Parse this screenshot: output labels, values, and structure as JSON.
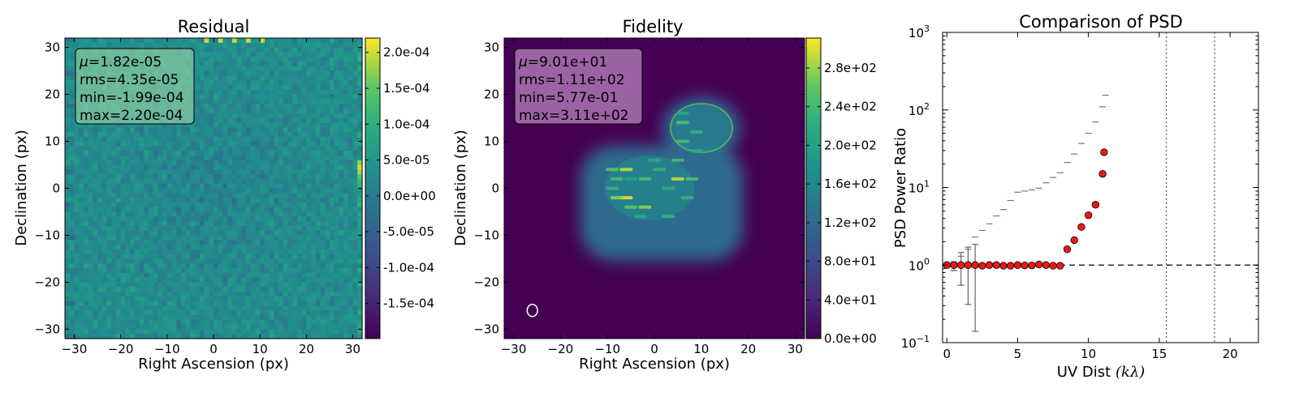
{
  "chart_data": [
    {
      "type": "heatmap",
      "title": "Residual",
      "xlabel": "Right Ascension (px)",
      "ylabel": "Declination (px)",
      "xlim": [
        -32,
        32
      ],
      "ylim": [
        -32,
        32
      ],
      "xticks": [
        -30,
        -20,
        -10,
        0,
        10,
        20,
        30
      ],
      "yticks": [
        -30,
        -20,
        -10,
        0,
        10,
        20,
        30
      ],
      "xtick_labels": [
        "−30",
        "−20",
        "−10",
        "0",
        "10",
        "20",
        "30"
      ],
      "ytick_labels": [
        "−30",
        "−20",
        "−10",
        "0",
        "10",
        "20",
        "30"
      ],
      "colormap": "viridis",
      "colorbar": {
        "min": -0.000199,
        "max": 0.00022,
        "ticks": [
          -0.00015,
          -0.0001,
          -5e-05,
          0,
          5e-05,
          0.0001,
          0.00015,
          0.0002
        ],
        "labels": [
          "-1.5e-04",
          "-1.0e-04",
          "-5.0e-05",
          "0.0e+00",
          "5.0e-05",
          "1.0e-04",
          "1.5e-04",
          "2.0e-04"
        ]
      },
      "stats": {
        "mu_symbol": "μ",
        "mu": "=1.82e-05",
        "rms": "rms=4.35e-05",
        "min": "min=-1.99e-04",
        "max": "max=2.20e-04"
      },
      "box_color": "#a8dca8"
    },
    {
      "type": "heatmap",
      "title": "Fidelity",
      "xlabel": "Right Ascension (px)",
      "ylabel": "Declination (px)",
      "xlim": [
        -32,
        32
      ],
      "ylim": [
        -32,
        32
      ],
      "xticks": [
        -30,
        -20,
        -10,
        0,
        10,
        20,
        30
      ],
      "yticks": [
        -30,
        -20,
        -10,
        0,
        10,
        20,
        30
      ],
      "xtick_labels": [
        "−30",
        "−20",
        "−10",
        "0",
        "10",
        "20",
        "30"
      ],
      "ytick_labels": [
        "−30",
        "−20",
        "−10",
        "0",
        "10",
        "20",
        "30"
      ],
      "colormap": "viridis",
      "colorbar": {
        "min": 0,
        "max": 311,
        "ticks": [
          0,
          40,
          80,
          120,
          160,
          200,
          240,
          280
        ],
        "labels": [
          "0.0e+00",
          "4.0e+01",
          "8.0e+01",
          "1.2e+02",
          "1.6e+02",
          "2.0e+02",
          "2.4e+02",
          "2.8e+02"
        ]
      },
      "stats": {
        "mu_symbol": "μ",
        "mu": "=9.01e+01",
        "rms": "rms=1.11e+02",
        "min": "min=5.77e-01",
        "max": "max=3.11e+02"
      },
      "box_color": "#e6b4e6",
      "beam": {
        "x": -26,
        "y": -26,
        "major": 2.6,
        "minor": 2.2,
        "color": "#ffffff"
      }
    },
    {
      "type": "scatter",
      "title": "Comparison of PSD",
      "xlabel_text": "UV Dist ",
      "xlabel_math": "(kλ)",
      "ylabel": "PSD Power Ratio",
      "xlim": [
        -0.3,
        22
      ],
      "ylim_log10": [
        -1,
        3
      ],
      "log_y": true,
      "xticks": [
        0,
        5,
        10,
        15,
        20
      ],
      "xtick_labels": [
        "0",
        "5",
        "10",
        "15",
        "20"
      ],
      "ytick_base": "10",
      "yticks_exp": [
        -1,
        0,
        1,
        2,
        3
      ],
      "ytick_exp_labels": [
        "−1",
        "0",
        "1",
        "2",
        "3"
      ],
      "reference_line": {
        "y": 1,
        "style": "dashed"
      },
      "vertical_lines": [
        15.5,
        18.9
      ],
      "series": [
        {
          "marker": "circle",
          "color": "#e8191a",
          "x": [
            0,
            0.5,
            1.0,
            1.5,
            2.0,
            2.5,
            3.0,
            3.5,
            4.0,
            4.5,
            5.0,
            5.5,
            6.0,
            6.5,
            7.0,
            7.5,
            8.0,
            8.5,
            9.0,
            9.5,
            10.0,
            10.5,
            11.0
          ],
          "y": [
            1.0,
            1.0,
            1.0,
            1.0,
            1.0,
            0.98,
            1.0,
            1.0,
            0.98,
            0.98,
            1.0,
            0.99,
            0.99,
            1.02,
            1.0,
            0.98,
            0.98,
            1.6,
            2.1,
            3.1,
            4.4,
            6.0,
            15.0
          ]
        }
      ],
      "extra_point": {
        "x": 11.1,
        "y": 28.5
      },
      "error_bars": [
        {
          "x": 0.5,
          "lo": 0.85,
          "hi": 1.1
        },
        {
          "x": 1.0,
          "lo": 0.55,
          "hi": 1.45
        },
        {
          "x": 1.5,
          "lo": 0.31,
          "hi": 1.7
        },
        {
          "x": 2.0,
          "lo": 0.14,
          "hi": 1.85
        }
      ],
      "upper_dashes": {
        "x": [
          0,
          0.5,
          1.0,
          1.5,
          2.0,
          2.5,
          3.0,
          3.5,
          4.0,
          4.5,
          5.0,
          5.5,
          6.0,
          6.5,
          7.0,
          7.5,
          8.0,
          8.5,
          9.0,
          9.5,
          10.0,
          10.5,
          11.0
        ],
        "y": [
          1.0,
          1.05,
          1.3,
          1.6,
          2.3,
          2.8,
          3.4,
          4.3,
          5.2,
          6.8,
          8.7,
          9.0,
          9.3,
          9.8,
          11.5,
          13.5,
          15.5,
          21.0,
          27.0,
          37.0,
          50.0,
          70.0,
          110.0
        ]
      },
      "upper_last": {
        "x": 11.2,
        "y": 155
      }
    }
  ]
}
